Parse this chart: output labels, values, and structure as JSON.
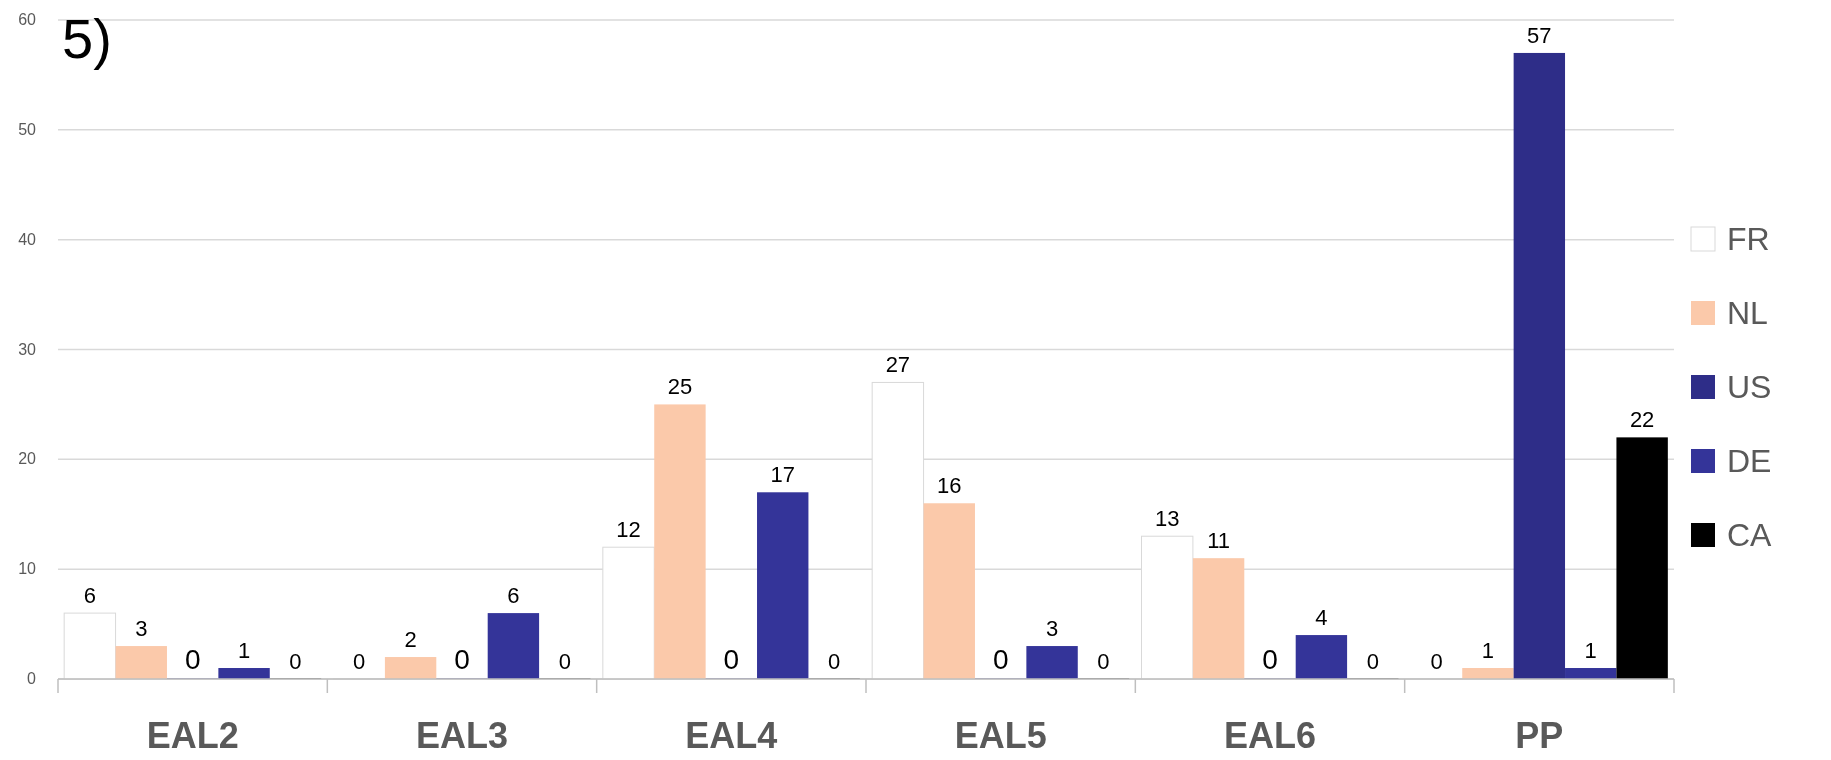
{
  "chart_data": {
    "type": "bar",
    "title": "5)",
    "categories": [
      "EAL2",
      "EAL3",
      "EAL4",
      "EAL5",
      "EAL6",
      "PP"
    ],
    "series": [
      {
        "name": "FR",
        "color": "#ffffff",
        "values": [
          6,
          0,
          12,
          27,
          13,
          0
        ]
      },
      {
        "name": "NL",
        "color": "#fbc9aa",
        "values": [
          3,
          2,
          25,
          16,
          11,
          1
        ]
      },
      {
        "name": "US",
        "color": "#2e2d88",
        "values": [
          0,
          0,
          0,
          0,
          0,
          57
        ]
      },
      {
        "name": "DE",
        "color": "#343499",
        "values": [
          1,
          6,
          17,
          3,
          4,
          1
        ]
      },
      {
        "name": "CA",
        "color": "#000000",
        "values": [
          0,
          0,
          0,
          0,
          0,
          22
        ]
      }
    ],
    "ylim": [
      0,
      60
    ],
    "yticks": [
      0,
      10,
      20,
      30,
      40,
      50,
      60
    ],
    "grid": "y",
    "legend": "right",
    "data_labels": true
  }
}
